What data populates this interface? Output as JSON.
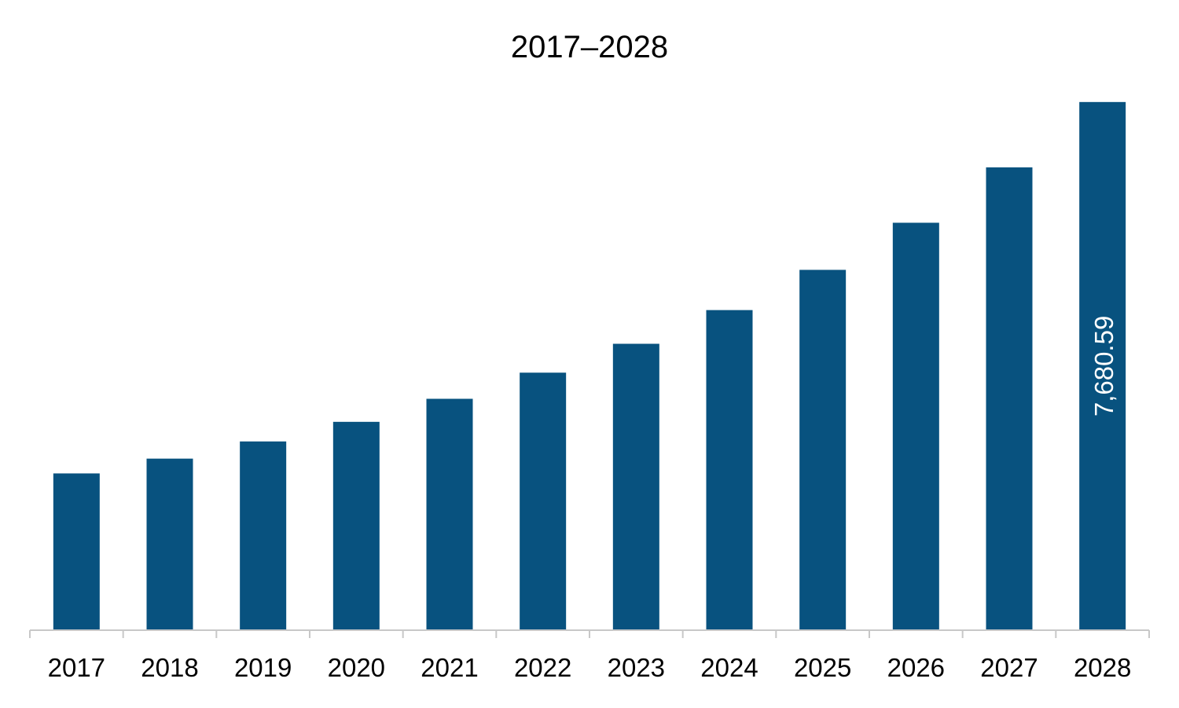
{
  "chart_data": {
    "type": "bar",
    "title": "2017–2028",
    "xlabel": "",
    "ylabel": "",
    "categories": [
      "2017",
      "2018",
      "2019",
      "2020",
      "2021",
      "2022",
      "2023",
      "2024",
      "2025",
      "2026",
      "2027",
      "2028"
    ],
    "values": [
      2280,
      2495,
      2745,
      3030,
      3365,
      3745,
      4165,
      4655,
      5240,
      5925,
      6730,
      7680.59
    ],
    "data_labels": {
      "2028": "7,680.59"
    },
    "ylim": [
      0,
      7930
    ],
    "grid": false,
    "legend": "none",
    "colors": {
      "bar": "#08527f",
      "axis": "#c8c8c8",
      "text": "#000000",
      "data_label": "#ffffff"
    }
  }
}
